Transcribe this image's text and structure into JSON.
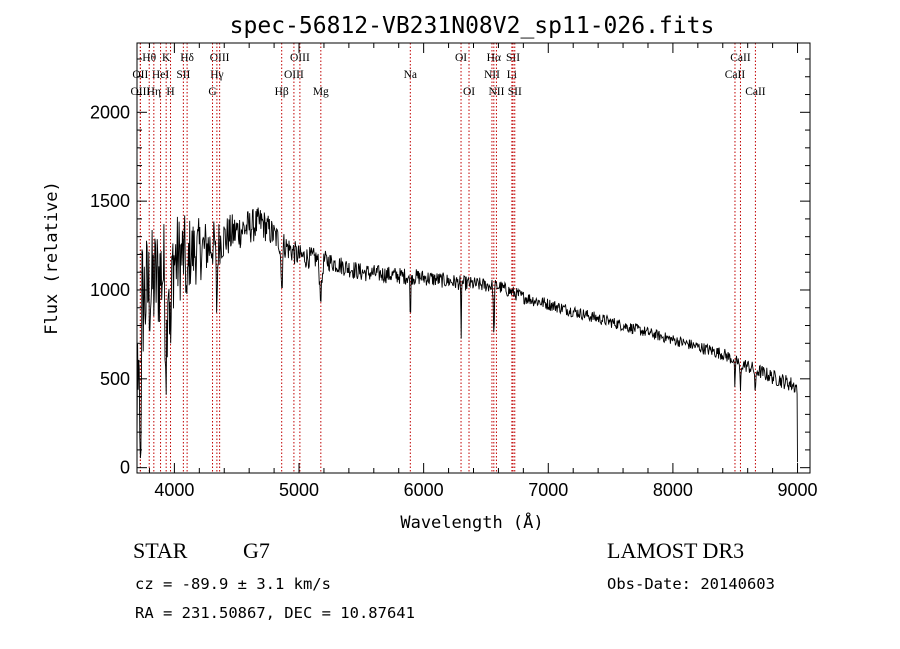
{
  "chart_data": {
    "type": "line",
    "title": "spec-56812-VB231N08V2_sp11-026.fits",
    "xlabel": "Wavelength (Å)",
    "ylabel": "Flux (relative)",
    "xlim": [
      3700,
      9100
    ],
    "ylim": [
      -30,
      2390
    ],
    "x_ticks": [
      4000,
      5000,
      6000,
      7000,
      8000,
      9000
    ],
    "y_ticks": [
      0,
      500,
      1000,
      1500,
      2000
    ],
    "grid": false,
    "continuum_knots": [
      [
        3700,
        900
      ],
      [
        3800,
        1000
      ],
      [
        3950,
        1150
      ],
      [
        4100,
        1200
      ],
      [
        4300,
        1250
      ],
      [
        4500,
        1330
      ],
      [
        4700,
        1380
      ],
      [
        4850,
        1270
      ],
      [
        5000,
        1190
      ],
      [
        5200,
        1170
      ],
      [
        5500,
        1100
      ],
      [
        5800,
        1080
      ],
      [
        6000,
        1070
      ],
      [
        6300,
        1040
      ],
      [
        6600,
        1020
      ],
      [
        6800,
        960
      ],
      [
        7000,
        920
      ],
      [
        7200,
        880
      ],
      [
        7500,
        820
      ],
      [
        7800,
        760
      ],
      [
        8100,
        700
      ],
      [
        8400,
        640
      ],
      [
        8600,
        570
      ],
      [
        8800,
        510
      ],
      [
        8950,
        470
      ],
      [
        9000,
        450
      ]
    ],
    "noise_knots": [
      [
        3700,
        420
      ],
      [
        3800,
        340
      ],
      [
        3950,
        300
      ],
      [
        4100,
        220
      ],
      [
        4300,
        140
      ],
      [
        4500,
        110
      ],
      [
        4800,
        80
      ],
      [
        5200,
        55
      ],
      [
        6000,
        45
      ],
      [
        7000,
        35
      ],
      [
        8000,
        30
      ],
      [
        9000,
        45
      ]
    ],
    "absorption_features": [
      {
        "center": 3934,
        "depth": 500,
        "width": 10
      },
      {
        "center": 3969,
        "depth": 450,
        "width": 10
      },
      {
        "center": 4101,
        "depth": 300,
        "width": 8
      },
      {
        "center": 4340,
        "depth": 350,
        "width": 8
      },
      {
        "center": 4861,
        "depth": 250,
        "width": 8
      },
      {
        "center": 5175,
        "depth": 200,
        "width": 14
      },
      {
        "center": 5893,
        "depth": 220,
        "width": 5
      },
      {
        "center": 6300,
        "depth": 380,
        "width": 3
      },
      {
        "center": 6563,
        "depth": 300,
        "width": 5
      },
      {
        "center": 8498,
        "depth": 140,
        "width": 6
      },
      {
        "center": 8542,
        "depth": 160,
        "width": 6
      },
      {
        "center": 8662,
        "depth": 140,
        "width": 6
      }
    ],
    "spectral_lines": [
      {
        "label": "OII",
        "wave": 3727,
        "row": 1
      },
      {
        "label": "OIII",
        "wave": 3727,
        "row": 2
      },
      {
        "label": "Hθ",
        "wave": 3798,
        "row": 0
      },
      {
        "label": "HeI",
        "wave": 3889,
        "row": 1
      },
      {
        "label": "Hη",
        "wave": 3835,
        "row": 2
      },
      {
        "label": "K",
        "wave": 3934,
        "row": 0
      },
      {
        "label": "H",
        "wave": 3969,
        "row": 2
      },
      {
        "label": "SII",
        "wave": 4072,
        "row": 1
      },
      {
        "label": "Hδ",
        "wave": 4102,
        "row": 0
      },
      {
        "label": "OIII",
        "wave": 4363,
        "row": 0
      },
      {
        "label": "Hγ",
        "wave": 4341,
        "row": 1
      },
      {
        "label": "G",
        "wave": 4306,
        "row": 2
      },
      {
        "label": "OIII",
        "wave": 5007,
        "row": 0
      },
      {
        "label": "OIII",
        "wave": 4959,
        "row": 1
      },
      {
        "label": "Hβ",
        "wave": 4861,
        "row": 2
      },
      {
        "label": "Mg",
        "wave": 5175,
        "row": 2
      },
      {
        "label": "Na",
        "wave": 5893,
        "row": 1
      },
      {
        "label": "OI",
        "wave": 6300,
        "row": 0
      },
      {
        "label": "OI",
        "wave": 6364,
        "row": 2
      },
      {
        "label": "Hα",
        "wave": 6563,
        "row": 0
      },
      {
        "label": "NII",
        "wave": 6548,
        "row": 1
      },
      {
        "label": "NII",
        "wave": 6584,
        "row": 2
      },
      {
        "label": "SII",
        "wave": 6717,
        "row": 0
      },
      {
        "label": "Li",
        "wave": 6708,
        "row": 1
      },
      {
        "label": "SII",
        "wave": 6731,
        "row": 2
      },
      {
        "label": "CaII",
        "wave": 8542,
        "row": 0
      },
      {
        "label": "CaII",
        "wave": 8498,
        "row": 1
      },
      {
        "label": "CaII",
        "wave": 8662,
        "row": 2
      }
    ]
  },
  "info": {
    "object_class": "STAR",
    "subclass": "G7",
    "survey": "LAMOST DR3",
    "cz": "cz = -89.9 ± 3.1 km/s",
    "obs_date": "Obs-Date: 20140603",
    "coords": "RA = 231.50867, DEC =  10.87641"
  }
}
